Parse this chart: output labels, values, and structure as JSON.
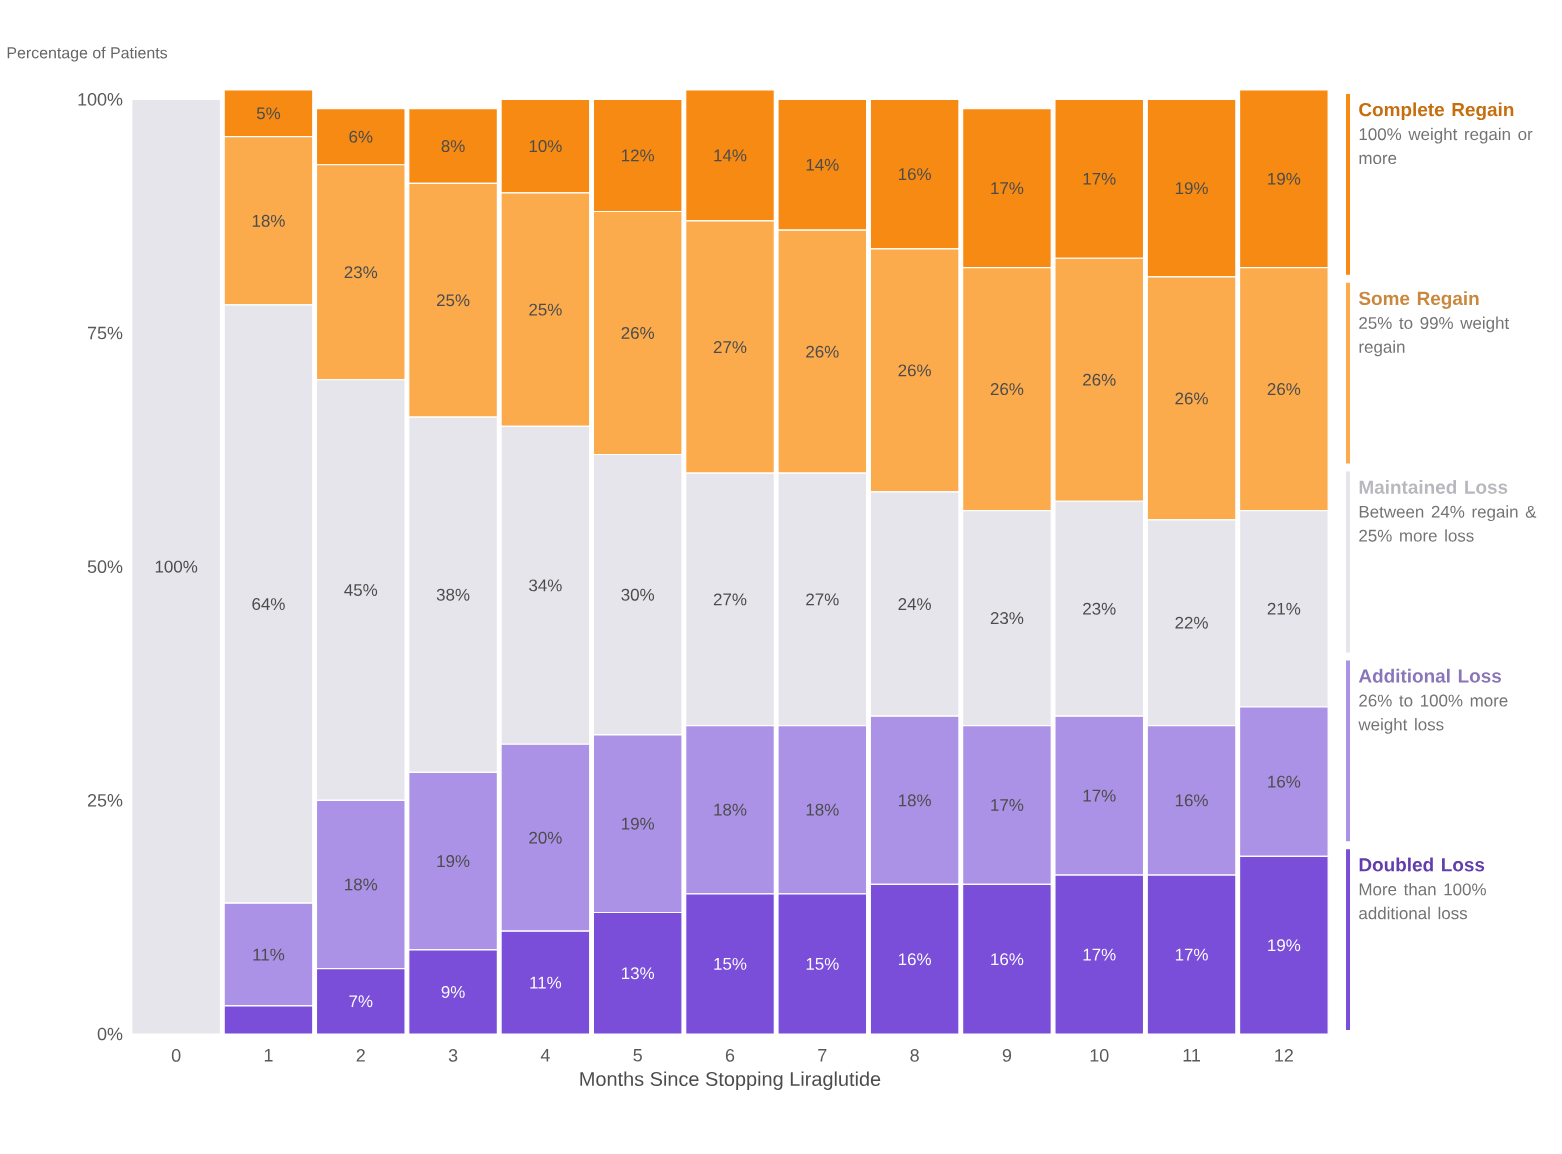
{
  "chart_data": {
    "type": "bar",
    "stacked": true,
    "ylabel": "Percentage of Patients",
    "xlabel": "Months Since Stopping Liraglutide",
    "categories": [
      "0",
      "1",
      "2",
      "3",
      "4",
      "5",
      "6",
      "7",
      "8",
      "9",
      "10",
      "11",
      "12"
    ],
    "series": [
      {
        "name": "Doubled Loss",
        "color": "#7a4ed8",
        "values": [
          0,
          3,
          7,
          9,
          11,
          13,
          15,
          15,
          16,
          16,
          17,
          17,
          19
        ],
        "value_labels": [
          null,
          null,
          "7%",
          "9%",
          "11%",
          "13%",
          "15%",
          "15%",
          "16%",
          "16%",
          "17%",
          "17%",
          "19%"
        ]
      },
      {
        "name": "Additional Loss",
        "color": "#ab92e6",
        "values": [
          0,
          11,
          18,
          19,
          20,
          19,
          18,
          18,
          18,
          17,
          17,
          16,
          16
        ],
        "value_labels": [
          null,
          "11%",
          "18%",
          "19%",
          "20%",
          "19%",
          "18%",
          "18%",
          "18%",
          "17%",
          "17%",
          "16%",
          "16%"
        ]
      },
      {
        "name": "Maintained Loss",
        "color": "#e6e5ec",
        "values": [
          100,
          64,
          45,
          38,
          34,
          30,
          27,
          27,
          24,
          23,
          23,
          22,
          21
        ],
        "value_labels": [
          "100%",
          "64%",
          "45%",
          "38%",
          "34%",
          "30%",
          "27%",
          "27%",
          "24%",
          "23%",
          "23%",
          "22%",
          "21%"
        ]
      },
      {
        "name": "Some Regain",
        "color": "#fbaa4c",
        "values": [
          0,
          18,
          23,
          25,
          25,
          26,
          27,
          26,
          26,
          26,
          26,
          26,
          26
        ],
        "value_labels": [
          null,
          "18%",
          "23%",
          "25%",
          "25%",
          "26%",
          "27%",
          "26%",
          "26%",
          "26%",
          "26%",
          "26%",
          "26%"
        ]
      },
      {
        "name": "Complete Regain",
        "color": "#f78a12",
        "values": [
          0,
          5,
          6,
          8,
          10,
          12,
          14,
          14,
          16,
          17,
          17,
          19,
          19
        ],
        "value_labels": [
          null,
          "5%",
          "6%",
          "8%",
          "10%",
          "12%",
          "14%",
          "14%",
          "16%",
          "17%",
          "17%",
          "19%",
          "19%"
        ]
      }
    ],
    "ylim": [
      0,
      101
    ],
    "yticks": [
      {
        "value": 0,
        "label": "0%"
      },
      {
        "value": 25,
        "label": "25%"
      },
      {
        "value": 50,
        "label": "50%"
      },
      {
        "value": 75,
        "label": "75%"
      },
      {
        "value": 100,
        "label": "100%"
      }
    ],
    "legend": "right",
    "annotations": [
      "More than 100% additional loss",
      "26% to 100% more weight loss",
      "Between 24% regain & 25% more loss",
      "25% to 99% weight regain",
      "100% weight regain or more"
    ]
  }
}
